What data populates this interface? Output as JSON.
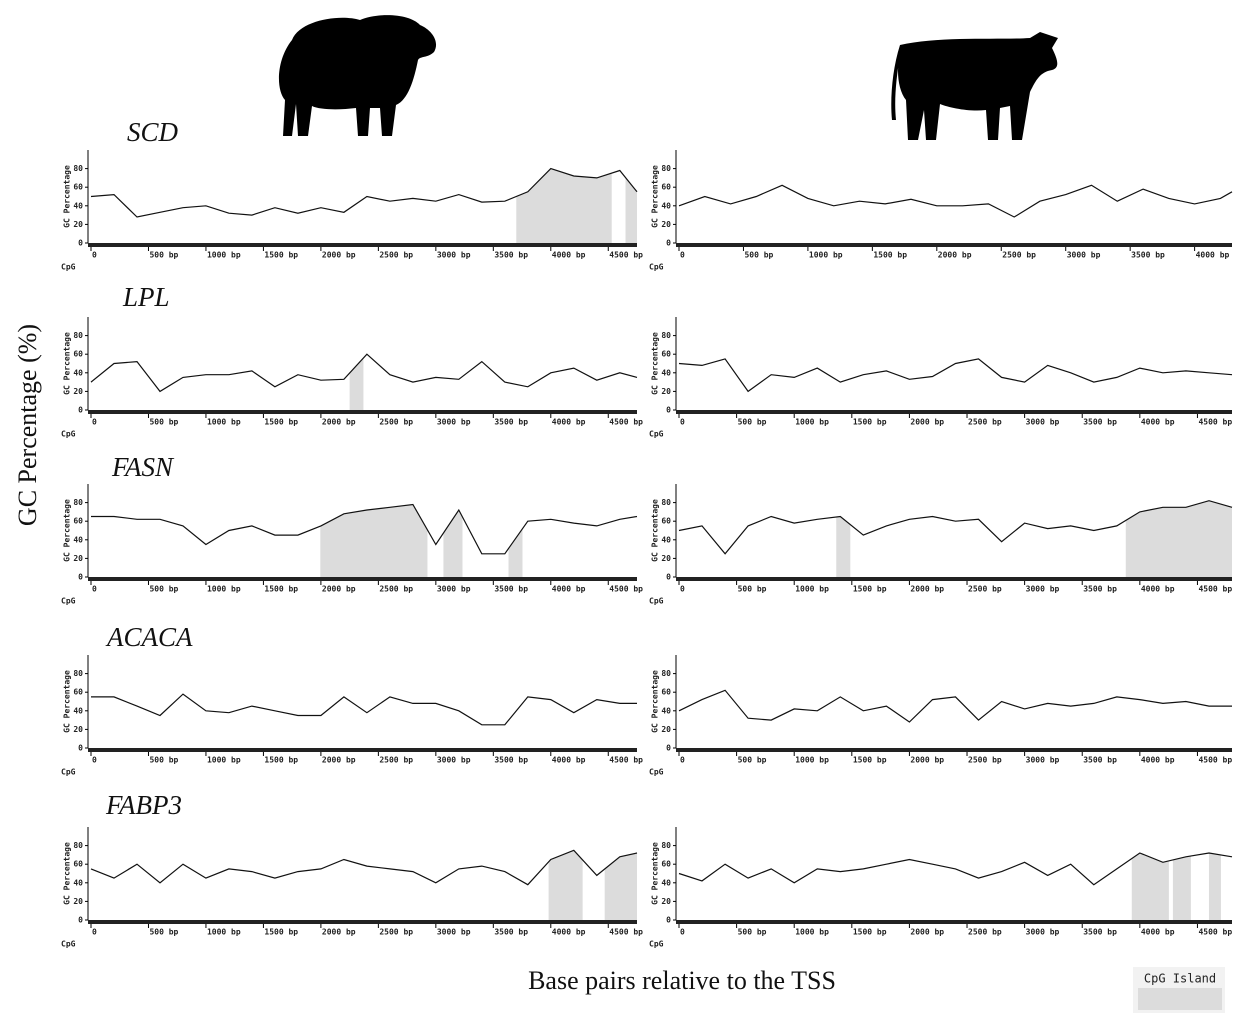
{
  "figure": {
    "y_label": "GC Percentage (%)",
    "x_label": "Base pairs relative to the TSS",
    "legend": "CpG Island"
  },
  "chart_data": [
    {
      "type": "line",
      "title": "SCD",
      "y_label": "GC Percentage",
      "cpg_label": "CpG",
      "x": [
        0,
        200,
        400,
        600,
        800,
        1000,
        1200,
        1400,
        1600,
        1800,
        2000,
        2200,
        2400,
        2600,
        2800,
        3000,
        3200,
        3400,
        3600,
        3800,
        4000,
        4200,
        4400,
        4600,
        4750
      ],
      "values": [
        50,
        52,
        28,
        33,
        38,
        40,
        32,
        30,
        38,
        32,
        38,
        33,
        50,
        45,
        48,
        45,
        52,
        44,
        45,
        55,
        80,
        72,
        70,
        78,
        55
      ],
      "islands": [
        [
          3700,
          4530
        ],
        [
          4650,
          4750
        ]
      ],
      "xlim": [
        0,
        4750
      ],
      "ylim": [
        0,
        100
      ],
      "yticks": [
        0,
        20,
        40,
        60,
        80
      ],
      "xticks": [
        0,
        {
          "value": 500,
          "label": "500 bp"
        },
        {
          "value": 1000,
          "label": "1000 bp"
        },
        {
          "value": 1500,
          "label": "1500 bp"
        },
        {
          "value": 2000,
          "label": "2000 bp"
        },
        {
          "value": 2500,
          "label": "2500 bp"
        },
        {
          "value": 3000,
          "label": "3000 bp"
        },
        {
          "value": 3500,
          "label": "3500 bp"
        },
        {
          "value": 4000,
          "label": "4000 bp"
        },
        {
          "value": 4500,
          "label": "4500 bp"
        }
      ]
    },
    {
      "type": "line",
      "y_label": "GC Percentage",
      "cpg_label": "CpG",
      "x": [
        0,
        200,
        400,
        600,
        800,
        1000,
        1200,
        1400,
        1600,
        1800,
        2000,
        2200,
        2400,
        2600,
        2800,
        3000,
        3200,
        3400,
        3600,
        3800,
        4000,
        4200,
        4290
      ],
      "values": [
        40,
        50,
        42,
        50,
        62,
        48,
        40,
        45,
        42,
        47,
        40,
        40,
        42,
        28,
        45,
        52,
        62,
        45,
        58,
        48,
        42,
        48,
        55
      ],
      "islands": [],
      "xlim": [
        0,
        4290
      ],
      "ylim": [
        0,
        100
      ],
      "yticks": [
        0,
        20,
        40,
        60,
        80
      ],
      "xticks": [
        0,
        {
          "value": 500,
          "label": "500 bp"
        },
        {
          "value": 1000,
          "label": "1000 bp"
        },
        {
          "value": 1500,
          "label": "1500 bp"
        },
        {
          "value": 2000,
          "label": "2000 bp"
        },
        {
          "value": 2500,
          "label": "2500 bp"
        },
        {
          "value": 3000,
          "label": "3000 bp"
        },
        {
          "value": 3500,
          "label": "3500 bp"
        },
        {
          "value": 4000,
          "label": "4000 bp"
        }
      ]
    },
    {
      "type": "line",
      "title": "LPL",
      "y_label": "GC Percentage",
      "cpg_label": "CpG",
      "x": [
        0,
        200,
        400,
        600,
        800,
        1000,
        1200,
        1400,
        1600,
        1800,
        2000,
        2200,
        2400,
        2600,
        2800,
        3000,
        3200,
        3400,
        3600,
        3800,
        4000,
        4200,
        4400,
        4600,
        4750
      ],
      "values": [
        30,
        50,
        52,
        20,
        35,
        38,
        38,
        42,
        25,
        38,
        32,
        33,
        60,
        38,
        30,
        35,
        33,
        52,
        30,
        25,
        40,
        45,
        32,
        40,
        35
      ],
      "islands": [
        [
          2250,
          2370
        ]
      ],
      "xlim": [
        0,
        4750
      ],
      "ylim": [
        0,
        100
      ],
      "yticks": [
        0,
        20,
        40,
        60,
        80
      ],
      "xticks": [
        0,
        {
          "value": 500,
          "label": "500 bp"
        },
        {
          "value": 1000,
          "label": "1000 bp"
        },
        {
          "value": 1500,
          "label": "1500 bp"
        },
        {
          "value": 2000,
          "label": "2000 bp"
        },
        {
          "value": 2500,
          "label": "2500 bp"
        },
        {
          "value": 3000,
          "label": "3000 bp"
        },
        {
          "value": 3500,
          "label": "3500 bp"
        },
        {
          "value": 4000,
          "label": "4000 bp"
        },
        {
          "value": 4500,
          "label": "4500 bp"
        }
      ]
    },
    {
      "type": "line",
      "y_label": "GC Percentage",
      "cpg_label": "CpG",
      "x": [
        0,
        200,
        400,
        600,
        800,
        1000,
        1200,
        1400,
        1600,
        1800,
        2000,
        2200,
        2400,
        2600,
        2800,
        3000,
        3200,
        3400,
        3600,
        3800,
        4000,
        4200,
        4400,
        4600,
        4800
      ],
      "values": [
        50,
        48,
        55,
        20,
        38,
        35,
        45,
        30,
        38,
        42,
        33,
        36,
        50,
        55,
        35,
        30,
        48,
        40,
        30,
        35,
        45,
        40,
        42,
        40,
        38
      ],
      "islands": [],
      "xlim": [
        0,
        4800
      ],
      "ylim": [
        0,
        100
      ],
      "yticks": [
        0,
        20,
        40,
        60,
        80
      ],
      "xticks": [
        0,
        {
          "value": 500,
          "label": "500 bp"
        },
        {
          "value": 1000,
          "label": "1000 bp"
        },
        {
          "value": 1500,
          "label": "1500 bp"
        },
        {
          "value": 2000,
          "label": "2000 bp"
        },
        {
          "value": 2500,
          "label": "2500 bp"
        },
        {
          "value": 3000,
          "label": "3000 bp"
        },
        {
          "value": 3500,
          "label": "3500 bp"
        },
        {
          "value": 4000,
          "label": "4000 bp"
        },
        {
          "value": 4500,
          "label": "4500 bp"
        }
      ]
    },
    {
      "type": "line",
      "title": "FASN",
      "y_label": "GC Percentage",
      "cpg_label": "CpG",
      "x": [
        0,
        200,
        400,
        600,
        800,
        1000,
        1200,
        1400,
        1600,
        1800,
        2000,
        2200,
        2400,
        2600,
        2800,
        3000,
        3200,
        3400,
        3600,
        3800,
        4000,
        4200,
        4400,
        4600,
        4750
      ],
      "values": [
        65,
        65,
        62,
        62,
        55,
        35,
        50,
        55,
        45,
        45,
        55,
        68,
        72,
        75,
        78,
        35,
        72,
        25,
        25,
        60,
        62,
        58,
        55,
        62,
        65
      ],
      "islands": [
        [
          1995,
          2927
        ],
        [
          3066,
          3232
        ],
        [
          3632,
          3754
        ]
      ],
      "xlim": [
        0,
        4750
      ],
      "ylim": [
        0,
        100
      ],
      "yticks": [
        0,
        20,
        40,
        60,
        80
      ],
      "xticks": [
        0,
        {
          "value": 500,
          "label": "500 bp"
        },
        {
          "value": 1000,
          "label": "1000 bp"
        },
        {
          "value": 1500,
          "label": "1500 bp"
        },
        {
          "value": 2000,
          "label": "2000 bp"
        },
        {
          "value": 2500,
          "label": "2500 bp"
        },
        {
          "value": 3000,
          "label": "3000 bp"
        },
        {
          "value": 3500,
          "label": "3500 bp"
        },
        {
          "value": 4000,
          "label": "4000 bp"
        },
        {
          "value": 4500,
          "label": "4500 bp"
        }
      ]
    },
    {
      "type": "line",
      "y_label": "GC Percentage",
      "cpg_label": "CpG",
      "x": [
        0,
        200,
        400,
        600,
        800,
        1000,
        1200,
        1400,
        1600,
        1800,
        2000,
        2200,
        2400,
        2600,
        2800,
        3000,
        3200,
        3400,
        3600,
        3800,
        4000,
        4200,
        4400,
        4600,
        4800
      ],
      "values": [
        50,
        55,
        25,
        55,
        65,
        58,
        62,
        65,
        45,
        55,
        62,
        65,
        60,
        62,
        38,
        58,
        52,
        55,
        50,
        55,
        70,
        75,
        75,
        82,
        75
      ],
      "islands": [
        [
          1365,
          1487
        ],
        [
          3878,
          4800
        ]
      ],
      "xlim": [
        0,
        4800
      ],
      "ylim": [
        0,
        100
      ],
      "yticks": [
        0,
        20,
        40,
        60,
        80
      ],
      "xticks": [
        0,
        {
          "value": 500,
          "label": "500 bp"
        },
        {
          "value": 1000,
          "label": "1000 bp"
        },
        {
          "value": 1500,
          "label": "1500 bp"
        },
        {
          "value": 2000,
          "label": "2000 bp"
        },
        {
          "value": 2500,
          "label": "2500 bp"
        },
        {
          "value": 3000,
          "label": "3000 bp"
        },
        {
          "value": 3500,
          "label": "3500 bp"
        },
        {
          "value": 4000,
          "label": "4000 bp"
        },
        {
          "value": 4500,
          "label": "4500 bp"
        }
      ]
    },
    {
      "type": "line",
      "title": "ACACA",
      "y_label": "GC Percentage",
      "cpg_label": "CpG",
      "x": [
        0,
        200,
        400,
        600,
        800,
        1000,
        1200,
        1400,
        1600,
        1800,
        2000,
        2200,
        2400,
        2600,
        2800,
        3000,
        3200,
        3400,
        3600,
        3800,
        4000,
        4200,
        4400,
        4600,
        4750
      ],
      "values": [
        55,
        55,
        45,
        35,
        58,
        40,
        38,
        45,
        40,
        35,
        35,
        55,
        38,
        55,
        48,
        48,
        40,
        25,
        25,
        55,
        52,
        38,
        52,
        48,
        48
      ],
      "islands": [],
      "xlim": [
        0,
        4750
      ],
      "ylim": [
        0,
        100
      ],
      "yticks": [
        0,
        20,
        40,
        60,
        80
      ],
      "xticks": [
        0,
        {
          "value": 500,
          "label": "500 bp"
        },
        {
          "value": 1000,
          "label": "1000 bp"
        },
        {
          "value": 1500,
          "label": "1500 bp"
        },
        {
          "value": 2000,
          "label": "2000 bp"
        },
        {
          "value": 2500,
          "label": "2500 bp"
        },
        {
          "value": 3000,
          "label": "3000 bp"
        },
        {
          "value": 3500,
          "label": "3500 bp"
        },
        {
          "value": 4000,
          "label": "4000 bp"
        },
        {
          "value": 4500,
          "label": "4500 bp"
        }
      ]
    },
    {
      "type": "line",
      "y_label": "GC Percentage",
      "cpg_label": "CpG",
      "x": [
        0,
        200,
        400,
        600,
        800,
        1000,
        1200,
        1400,
        1600,
        1800,
        2000,
        2200,
        2400,
        2600,
        2800,
        3000,
        3200,
        3400,
        3600,
        3800,
        4000,
        4200,
        4400,
        4600,
        4800
      ],
      "values": [
        40,
        52,
        62,
        32,
        30,
        42,
        40,
        55,
        40,
        45,
        28,
        52,
        55,
        30,
        50,
        42,
        48,
        45,
        48,
        55,
        52,
        48,
        50,
        45,
        45
      ],
      "islands": [],
      "xlim": [
        0,
        4800
      ],
      "ylim": [
        0,
        100
      ],
      "yticks": [
        0,
        20,
        40,
        60,
        80
      ],
      "xticks": [
        0,
        {
          "value": 500,
          "label": "500 bp"
        },
        {
          "value": 1000,
          "label": "1000 bp"
        },
        {
          "value": 1500,
          "label": "1500 bp"
        },
        {
          "value": 2000,
          "label": "2000 bp"
        },
        {
          "value": 2500,
          "label": "2500 bp"
        },
        {
          "value": 3000,
          "label": "3000 bp"
        },
        {
          "value": 3500,
          "label": "3500 bp"
        },
        {
          "value": 4000,
          "label": "4000 bp"
        },
        {
          "value": 4500,
          "label": "4500 bp"
        }
      ]
    },
    {
      "type": "line",
      "title": "FABP3",
      "y_label": "GC Percentage",
      "cpg_label": "CpG",
      "x": [
        0,
        200,
        400,
        600,
        800,
        1000,
        1200,
        1400,
        1600,
        1800,
        2000,
        2200,
        2400,
        2600,
        2800,
        3000,
        3200,
        3400,
        3600,
        3800,
        4000,
        4200,
        4400,
        4600,
        4750
      ],
      "values": [
        55,
        45,
        60,
        40,
        60,
        45,
        55,
        52,
        45,
        52,
        55,
        65,
        58,
        55,
        52,
        40,
        55,
        58,
        52,
        38,
        65,
        75,
        48,
        68,
        72
      ],
      "islands": [
        [
          3981,
          4277
        ],
        [
          4469,
          4750
        ]
      ],
      "xlim": [
        0,
        4750
      ],
      "ylim": [
        0,
        100
      ],
      "yticks": [
        0,
        20,
        40,
        60,
        80
      ],
      "xticks": [
        0,
        {
          "value": 500,
          "label": "500 bp"
        },
        {
          "value": 1000,
          "label": "1000 bp"
        },
        {
          "value": 1500,
          "label": "1500 bp"
        },
        {
          "value": 2000,
          "label": "2000 bp"
        },
        {
          "value": 2500,
          "label": "2500 bp"
        },
        {
          "value": 3000,
          "label": "3000 bp"
        },
        {
          "value": 3500,
          "label": "3500 bp"
        },
        {
          "value": 4000,
          "label": "4000 bp"
        },
        {
          "value": 4500,
          "label": "4500 bp"
        }
      ]
    },
    {
      "type": "line",
      "y_label": "GC Percentage",
      "cpg_label": "CpG",
      "x": [
        0,
        200,
        400,
        600,
        800,
        1000,
        1200,
        1400,
        1600,
        1800,
        2000,
        2200,
        2400,
        2600,
        2800,
        3000,
        3200,
        3400,
        3600,
        3800,
        4000,
        4200,
        4400,
        4600,
        4800
      ],
      "values": [
        50,
        42,
        60,
        45,
        55,
        40,
        55,
        52,
        55,
        60,
        65,
        60,
        55,
        45,
        52,
        62,
        48,
        60,
        38,
        55,
        72,
        62,
        68,
        72,
        68
      ],
      "islands": [
        [
          3930,
          4252
        ],
        [
          4287,
          4443
        ],
        [
          4600,
          4704
        ]
      ],
      "xlim": [
        0,
        4800
      ],
      "ylim": [
        0,
        100
      ],
      "yticks": [
        0,
        20,
        40,
        60,
        80
      ],
      "xticks": [
        0,
        {
          "value": 500,
          "label": "500 bp"
        },
        {
          "value": 1000,
          "label": "1000 bp"
        },
        {
          "value": 1500,
          "label": "1500 bp"
        },
        {
          "value": 2000,
          "label": "2000 bp"
        },
        {
          "value": 2500,
          "label": "2500 bp"
        },
        {
          "value": 3000,
          "label": "3000 bp"
        },
        {
          "value": 3500,
          "label": "3500 bp"
        },
        {
          "value": 4000,
          "label": "4000 bp"
        },
        {
          "value": 4500,
          "label": "4500 bp"
        }
      ]
    }
  ]
}
